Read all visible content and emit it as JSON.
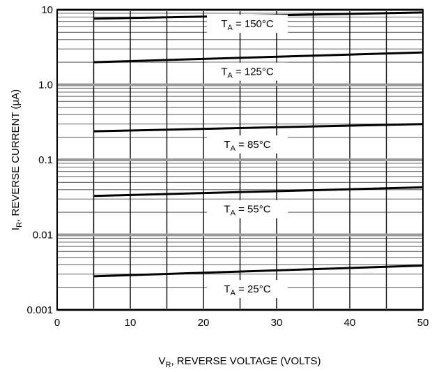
{
  "chart_data": {
    "type": "line",
    "xlabel": {
      "main": "V",
      "sub": "R",
      "rest": ", REVERSE VOLTAGE (VOLTS)"
    },
    "ylabel": {
      "main": "I",
      "sub": "R",
      "rest": ", REVERSE CURRENT (μA)"
    },
    "xlim": [
      0,
      50
    ],
    "ylim": [
      0.001,
      10
    ],
    "yscale": "log",
    "grid": true,
    "x_ticks": [
      0,
      10,
      20,
      30,
      40,
      50
    ],
    "x_tick_labels": [
      "0",
      "10",
      "20",
      "30",
      "40",
      "50"
    ],
    "y_ticks": [
      0.001,
      0.01,
      0.1,
      1,
      10
    ],
    "y_tick_labels": [
      "0.001",
      "0.01",
      "0.1",
      "1.0",
      "10"
    ],
    "series": [
      {
        "name": "T_A = 150°C",
        "label_main": "T",
        "label_sub": "A",
        "label_rest": " = 150°C",
        "label_at": [
          26,
          6.5
        ],
        "x": [
          5,
          50
        ],
        "y": [
          7.6,
          9.2
        ]
      },
      {
        "name": "T_A = 125°C",
        "label_main": "T",
        "label_sub": "A",
        "label_rest": " = 125°C",
        "label_at": [
          26,
          1.5
        ],
        "x": [
          5,
          50
        ],
        "y": [
          2.0,
          2.7
        ]
      },
      {
        "name": "T_A = 85°C",
        "label_main": "T",
        "label_sub": "A",
        "label_rest": " = 85°C",
        "label_at": [
          26,
          0.16
        ],
        "x": [
          5,
          50
        ],
        "y": [
          0.24,
          0.3
        ]
      },
      {
        "name": "T_A = 55°C",
        "label_main": "T",
        "label_sub": "A",
        "label_rest": " = 55°C",
        "label_at": [
          26,
          0.022
        ],
        "x": [
          5,
          50
        ],
        "y": [
          0.033,
          0.043
        ]
      },
      {
        "name": "T_A = 25°C",
        "label_main": "T",
        "label_sub": "A",
        "label_rest": " = 25°C",
        "label_at": [
          26,
          0.0019
        ],
        "x": [
          5,
          50
        ],
        "y": [
          0.0028,
          0.0039
        ]
      }
    ],
    "colors": {
      "line": "#000000",
      "grid_major": "#000000",
      "grid_minor": "#777777",
      "label_bg": "#ffffff"
    }
  }
}
